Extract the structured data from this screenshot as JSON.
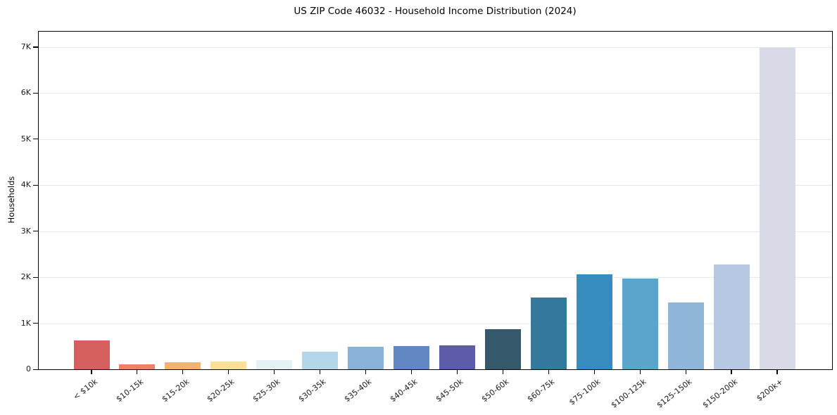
{
  "chart_data": {
    "type": "bar",
    "title": "US ZIP Code 46032 - Household Income Distribution (2024)",
    "xlabel": "",
    "ylabel": "Households",
    "categories": [
      "< $10k",
      "$10-15k",
      "$15-20k",
      "$20-25k",
      "$25-30k",
      "$30-35k",
      "$35-40k",
      "$40-45k",
      "$45-50k",
      "$50-60k",
      "$60-75k",
      "$75-100k",
      "$100-125k",
      "$125-150k",
      "$150-200k",
      "$200k+"
    ],
    "values": [
      630,
      105,
      160,
      175,
      205,
      380,
      490,
      505,
      520,
      865,
      1560,
      2065,
      1965,
      1445,
      2285,
      6980
    ],
    "bar_colors": [
      "#d65f5f",
      "#ee8165",
      "#f5b16e",
      "#fbdf95",
      "#e6f1f4",
      "#b3d7e8",
      "#88b2d8",
      "#6288c3",
      "#5c5ca8",
      "#35596b",
      "#34789e",
      "#378cbf",
      "#5ba4ca",
      "#8fb6d9",
      "#b7c9e2",
      "#d8dae8"
    ],
    "ylim": [
      0,
      7350
    ],
    "ytick_values": [
      0,
      1000,
      2000,
      3000,
      4000,
      5000,
      6000,
      7000
    ],
    "ytick_labels": [
      "0",
      "1K",
      "2K",
      "3K",
      "4K",
      "5K",
      "6K",
      "7K"
    ],
    "grid": "horizontal",
    "legend": "none",
    "background_color": "#ffffff",
    "grid_color": "#e8e8e8",
    "text_color": "#1a1a1a",
    "x_tick_rotation_deg": 38
  }
}
